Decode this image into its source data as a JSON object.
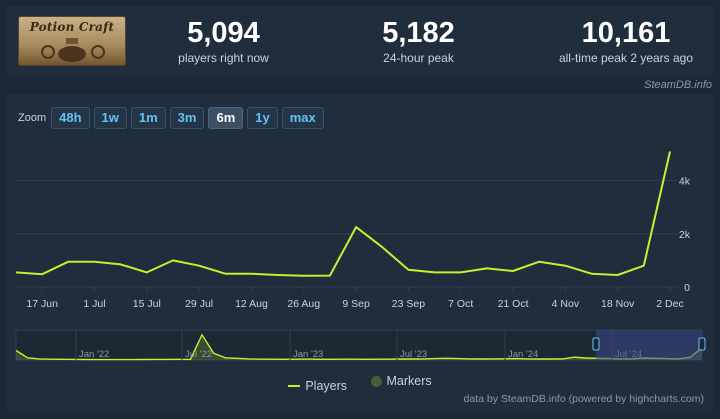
{
  "header": {
    "game_name": "Potion Craft",
    "stats": [
      {
        "value": "5,094",
        "label": "players right now"
      },
      {
        "value": "5,182",
        "label": "24-hour peak"
      },
      {
        "value": "10,161",
        "label": "all-time peak 2 years ago"
      }
    ],
    "credit": "SteamDB.info"
  },
  "zoom": {
    "label": "Zoom",
    "buttons": [
      "48h",
      "1w",
      "1m",
      "3m",
      "6m",
      "1y",
      "max"
    ],
    "active": "6m"
  },
  "legend": {
    "players": "Players",
    "markers": "Markers"
  },
  "footer": {
    "credit": "data by SteamDB.info (powered by highcharts.com)"
  },
  "colors": {
    "line": "#c6f02f",
    "background": "#202d3c",
    "grid": "#2e3e50",
    "navigator_window": "#3b4a8a"
  },
  "chart_data": {
    "type": "line",
    "series": [
      {
        "name": "Players",
        "x": [
          "2024-06-10",
          "2024-06-17",
          "2024-06-24",
          "2024-07-01",
          "2024-07-08",
          "2024-07-15",
          "2024-07-22",
          "2024-07-29",
          "2024-08-05",
          "2024-08-12",
          "2024-08-19",
          "2024-08-26",
          "2024-09-02",
          "2024-09-09",
          "2024-09-16",
          "2024-09-23",
          "2024-09-30",
          "2024-10-07",
          "2024-10-14",
          "2024-10-21",
          "2024-10-28",
          "2024-11-04",
          "2024-11-11",
          "2024-11-18",
          "2024-11-25",
          "2024-12-02"
        ],
        "values": [
          550,
          480,
          950,
          950,
          850,
          550,
          1000,
          800,
          500,
          500,
          450,
          420,
          430,
          2250,
          1500,
          650,
          550,
          550,
          700,
          600,
          950,
          800,
          500,
          450,
          800,
          5094
        ]
      }
    ],
    "x_tick_labels": [
      "17 Jun",
      "1 Jul",
      "15 Jul",
      "29 Jul",
      "12 Aug",
      "26 Aug",
      "9 Sep",
      "23 Sep",
      "7 Oct",
      "21 Oct",
      "4 Nov",
      "18 Nov",
      "2 Dec"
    ],
    "y_tick_labels": [
      "0",
      "2k",
      "4k"
    ],
    "ylim": [
      0,
      5300
    ],
    "grid": true,
    "navigator": {
      "labels": [
        "Jan '22",
        "Jul '22",
        "Jan '23",
        "Jul '23",
        "Jan '24",
        "Jul '24"
      ],
      "values": [
        1700,
        400,
        200,
        150,
        120,
        100,
        90,
        80,
        80,
        70,
        80,
        90,
        110,
        100,
        120,
        100,
        4500,
        1200,
        400,
        300,
        200,
        150,
        140,
        130,
        150,
        160,
        140,
        130,
        140,
        150,
        130,
        150,
        140,
        170,
        180,
        200,
        250,
        300,
        250,
        200,
        180,
        190,
        220,
        250,
        200,
        180,
        170,
        200,
        500,
        350,
        300,
        250,
        200,
        220,
        350,
        300,
        250,
        200,
        500,
        2200
      ]
    }
  }
}
